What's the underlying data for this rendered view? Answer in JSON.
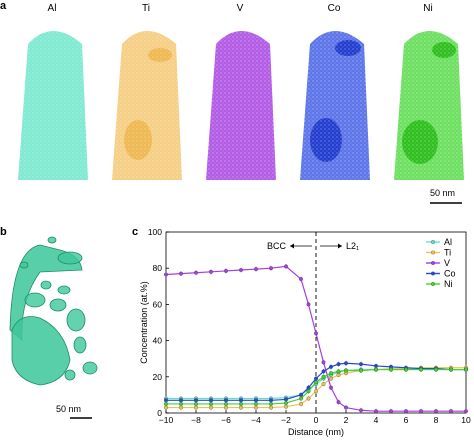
{
  "panel_a": {
    "letter": "a",
    "maps": [
      {
        "element": "Al",
        "color": "#5fe3c5"
      },
      {
        "element": "Ti",
        "color": "#f2bf5c"
      },
      {
        "element": "V",
        "color": "#a63fe0"
      },
      {
        "element": "Co",
        "color": "#2747e0"
      },
      {
        "element": "Ni",
        "color": "#3ed62c"
      }
    ],
    "scale_bar": "50 nm"
  },
  "panel_b": {
    "letter": "b",
    "color": "#3cc79a",
    "scale_bar": "50 nm"
  },
  "panel_c": {
    "letter": "c",
    "annotations": {
      "left": "BCC",
      "right": "L2₁"
    }
  },
  "chart_data": {
    "type": "line",
    "title": "",
    "xlabel": "Distance (nm)",
    "ylabel": "Concentration (at.%)",
    "xlim": [
      -10,
      10
    ],
    "ylim": [
      0,
      100
    ],
    "x_ticks": [
      -10,
      -8,
      -6,
      -4,
      -2,
      0,
      2,
      4,
      6,
      8,
      10
    ],
    "y_ticks": [
      0,
      20,
      40,
      60,
      80,
      100
    ],
    "grid": false,
    "legend_position": "top-right",
    "vline_x": 0,
    "x": [
      -10,
      -9,
      -8,
      -7,
      -6,
      -5,
      -4,
      -3,
      -2,
      -1,
      -0.5,
      0,
      0.5,
      1,
      1.5,
      2,
      3,
      4,
      5,
      6,
      7,
      8,
      9,
      10
    ],
    "series": [
      {
        "name": "Al",
        "color": "#5fe3c5",
        "values": [
          8,
          8,
          8,
          8,
          8,
          8,
          8,
          8,
          8.5,
          10,
          13,
          16,
          19,
          21,
          22.5,
          23.5,
          24,
          24,
          24,
          24,
          24,
          24,
          24,
          24
        ]
      },
      {
        "name": "Ti",
        "color": "#f2bf5c",
        "values": [
          3,
          3,
          3,
          3,
          3,
          3,
          3,
          3,
          3.5,
          5,
          8,
          12,
          16,
          19,
          21,
          22,
          23.5,
          24,
          24.5,
          24.5,
          25,
          25,
          25,
          25
        ]
      },
      {
        "name": "V",
        "color": "#a63fe0",
        "values": [
          76.5,
          77,
          77.5,
          78,
          78.5,
          79,
          79.5,
          80,
          81,
          74,
          60,
          44,
          28,
          14,
          6,
          3,
          1.5,
          1,
          1,
          1,
          1,
          1,
          1,
          1
        ]
      },
      {
        "name": "Co",
        "color": "#2747e0",
        "values": [
          7,
          7,
          7,
          7,
          7,
          7,
          7,
          7,
          7.5,
          10,
          14,
          19,
          23,
          25.5,
          27,
          27.5,
          27,
          26,
          25.5,
          25,
          24.5,
          24.5,
          24,
          24
        ]
      },
      {
        "name": "Ni",
        "color": "#3ed62c",
        "values": [
          5,
          5,
          5,
          5,
          5,
          5,
          5,
          5,
          5.5,
          8,
          12,
          17,
          20,
          22,
          23,
          23.5,
          23.5,
          24,
          24,
          24,
          24,
          24,
          24,
          24
        ]
      }
    ]
  }
}
